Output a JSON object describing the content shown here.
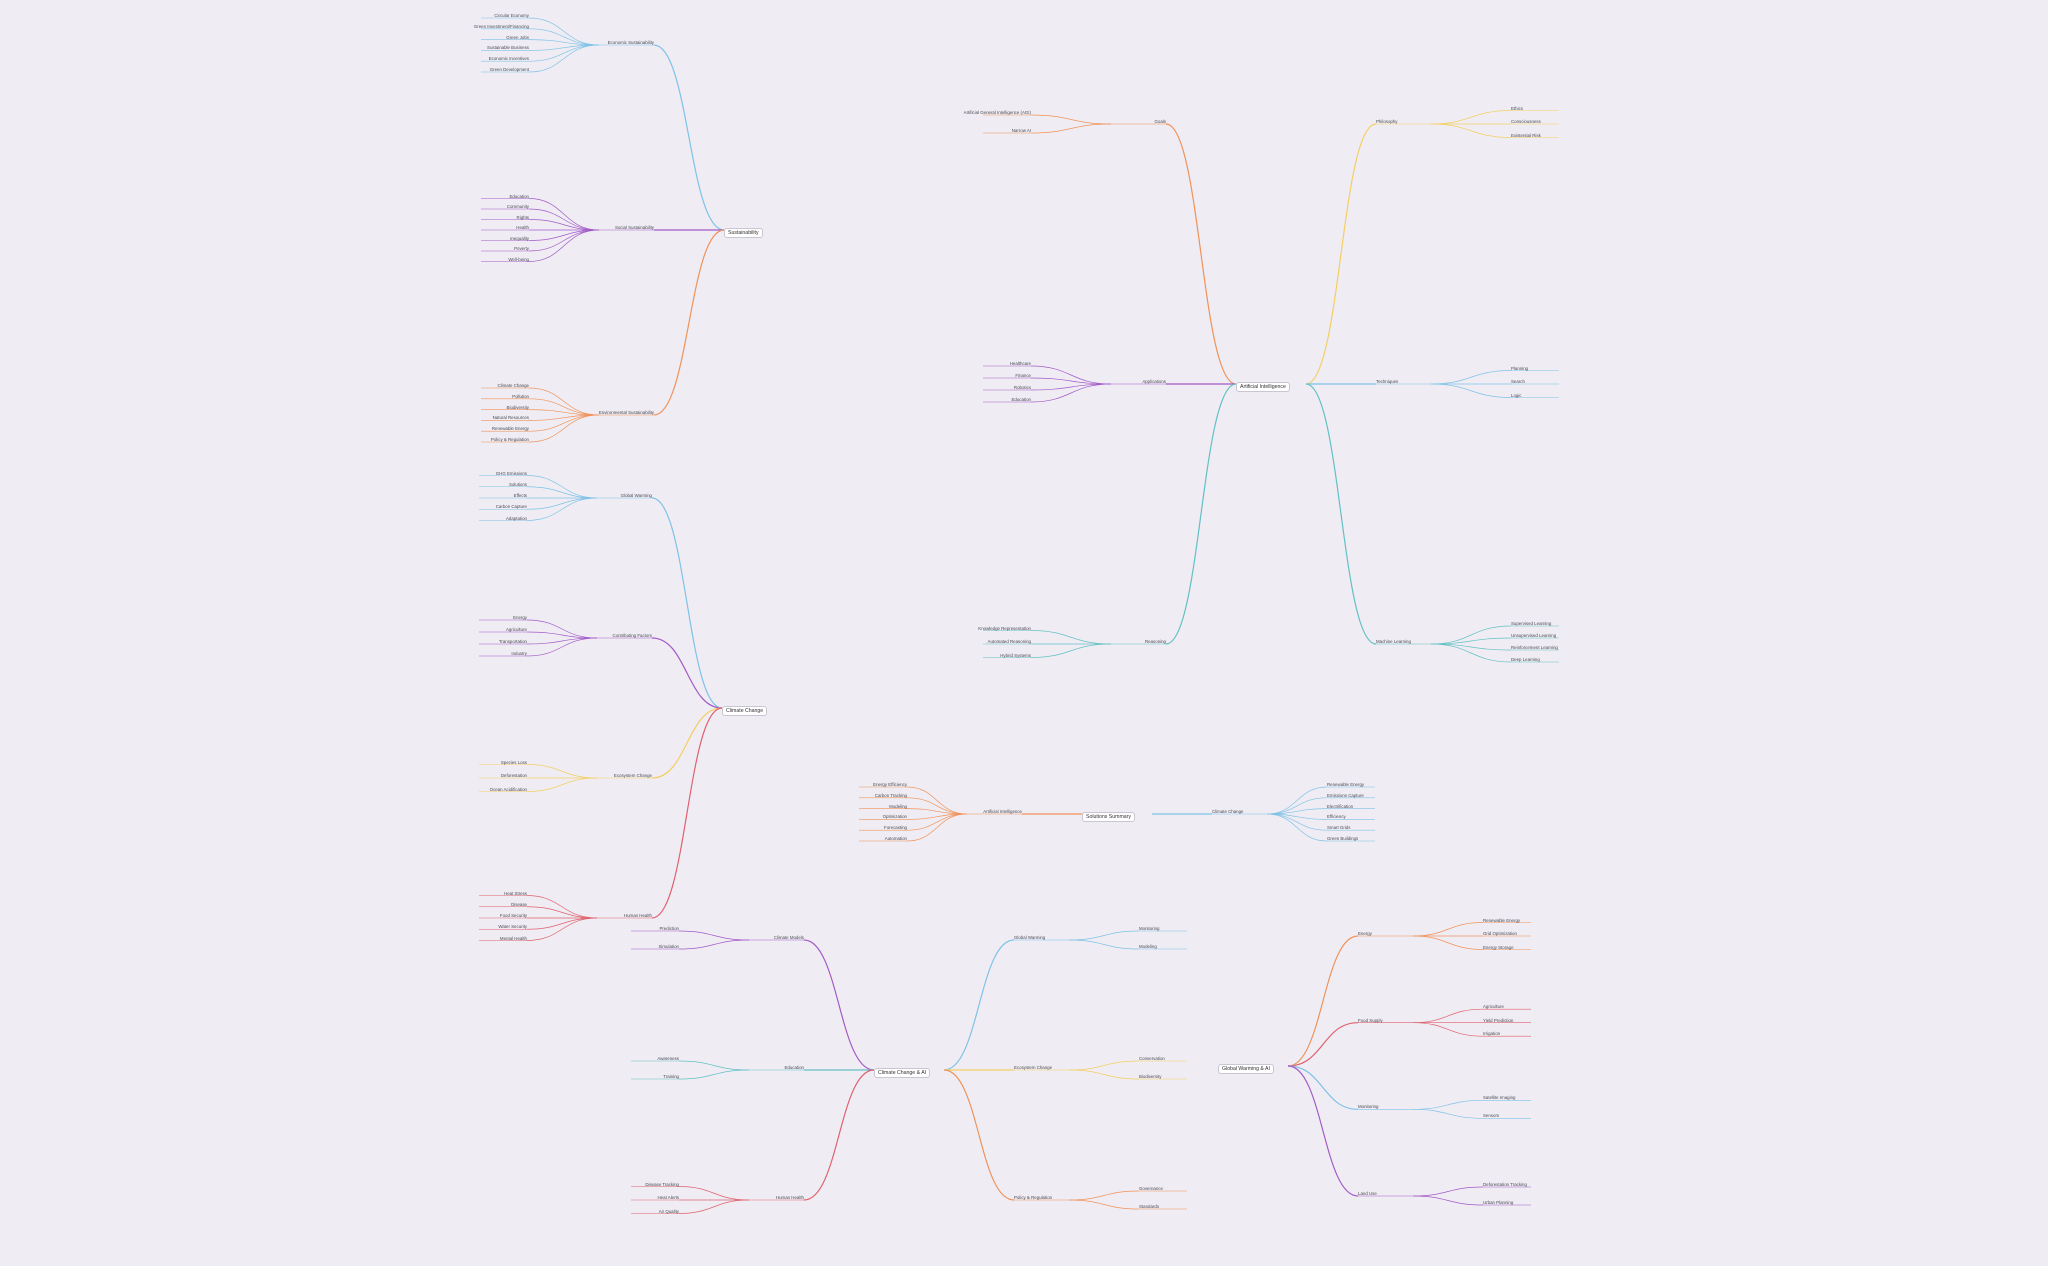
{
  "colors": {
    "background": "#efedf3",
    "blue": "#7fc2e8",
    "purple": "#a25ac8",
    "orange": "#f0925a",
    "yellow": "#f3cf63",
    "red": "#e0606e",
    "teal": "#63c0c4"
  },
  "roots": {
    "sustainability": "Sustainability",
    "climate": "Climate Change",
    "ai": "Artificial Intelligence",
    "solutions": "Solutions Summary",
    "climate_ai": "Climate Change & AI",
    "warming_ai": "Global Warming & AI"
  },
  "mindmaps": [
    {
      "root_key": "sustainability",
      "branches": [
        {
          "label": "Economic Sustainability",
          "color": "blue",
          "children": [
            "Circular Economy",
            "Green Investment/Financing",
            "Green Jobs",
            "Sustainable Business",
            "Economic Incentives",
            "Green Development"
          ]
        },
        {
          "label": "Social Sustainability",
          "color": "purple",
          "children": [
            "Education",
            "Community",
            "Rights",
            "Health",
            "Inequality",
            "Poverty",
            "Well-being"
          ]
        },
        {
          "label": "Environmental Sustainability",
          "color": "orange",
          "children": [
            "Climate Change",
            "Pollution",
            "Biodiversity",
            "Natural Resources",
            "Renewable Energy",
            "Policy & Regulation"
          ]
        }
      ]
    },
    {
      "root_key": "climate",
      "branches": [
        {
          "label": "Global Warming",
          "color": "blue",
          "children": [
            "GHG Emissions",
            "Solutions",
            "Effects",
            "Carbon Capture",
            "Adaptation"
          ]
        },
        {
          "label": "Contributing Factors",
          "color": "purple",
          "children": [
            "Energy",
            "Agriculture",
            "Transportation",
            "Industry"
          ]
        },
        {
          "label": "Ecosystem Change",
          "color": "yellow",
          "children": [
            "Species Loss",
            "Deforestation",
            "Ocean Acidification"
          ]
        },
        {
          "label": "Human Health",
          "color": "red",
          "children": [
            "Heat Stress",
            "Disease",
            "Food Security",
            "Water Security",
            "Mental Health"
          ]
        }
      ]
    },
    {
      "root_key": "ai",
      "branches": [
        {
          "label": "Philosophy",
          "color": "yellow",
          "children": [
            "Ethics",
            "Consciousness",
            "Existential Risk"
          ]
        },
        {
          "label": "Goals",
          "color": "orange",
          "children": [
            "Artificial General Intelligence (AGI)",
            "Narrow AI"
          ]
        },
        {
          "label": "Techniques",
          "color": "blue",
          "children": [
            "Planning",
            "Search",
            "Logic"
          ]
        },
        {
          "label": "Applications",
          "color": "purple",
          "children": [
            "Healthcare",
            "Finance",
            "Robotics",
            "Education"
          ]
        },
        {
          "label": "Machine Learning",
          "color": "teal",
          "children": [
            "Supervised Learning",
            "Unsupervised Learning",
            "Reinforcement Learning",
            "Deep Learning"
          ]
        },
        {
          "label": "Reasoning",
          "color": "teal",
          "children": [
            "Knowledge Representation",
            "Automated Reasoning",
            "Hybrid Systems"
          ]
        }
      ]
    },
    {
      "root_key": "solutions",
      "branches": [
        {
          "label": "Climate Change",
          "color": "blue",
          "children": [
            "Renewable Energy",
            "Emissions Capture",
            "Electrification",
            "Efficiency",
            "Smart Grids",
            "Green Buildings"
          ]
        },
        {
          "label": "Artificial Intelligence",
          "color": "orange",
          "children": [
            "Energy Efficiency",
            "Carbon Tracking",
            "Modeling",
            "Optimization",
            "Forecasting",
            "Automation"
          ]
        }
      ]
    },
    {
      "root_key": "climate_ai",
      "branches": [
        {
          "label": "Global Warming",
          "color": "blue",
          "children": [
            "Monitoring",
            "Modeling"
          ]
        },
        {
          "label": "Climate Models",
          "color": "purple",
          "children": [
            "Prediction",
            "Simulation"
          ]
        },
        {
          "label": "Ecosystem Change",
          "color": "yellow",
          "children": [
            "Conservation",
            "Biodiversity"
          ]
        },
        {
          "label": "Education",
          "color": "teal",
          "children": [
            "Awareness",
            "Training"
          ]
        },
        {
          "label": "Policy & Regulation",
          "color": "orange",
          "children": [
            "Governance",
            "Standards"
          ]
        },
        {
          "label": "Human Health",
          "color": "red",
          "children": [
            "Disease Tracking",
            "Heat Alerts",
            "Air Quality"
          ]
        }
      ]
    },
    {
      "root_key": "warming_ai",
      "branches": [
        {
          "label": "Energy",
          "color": "orange",
          "children": [
            "Renewable Energy",
            "Grid Optimization",
            "Energy Storage"
          ]
        },
        {
          "label": "Food Supply",
          "color": "red",
          "children": [
            "Agriculture",
            "Yield Prediction",
            "Irrigation"
          ]
        },
        {
          "label": "Monitoring",
          "color": "blue",
          "children": [
            "Satellite Imaging",
            "Sensors"
          ]
        },
        {
          "label": "Land Use",
          "color": "purple",
          "children": [
            "Deforestation Tracking",
            "Urban Planning"
          ]
        }
      ]
    }
  ]
}
